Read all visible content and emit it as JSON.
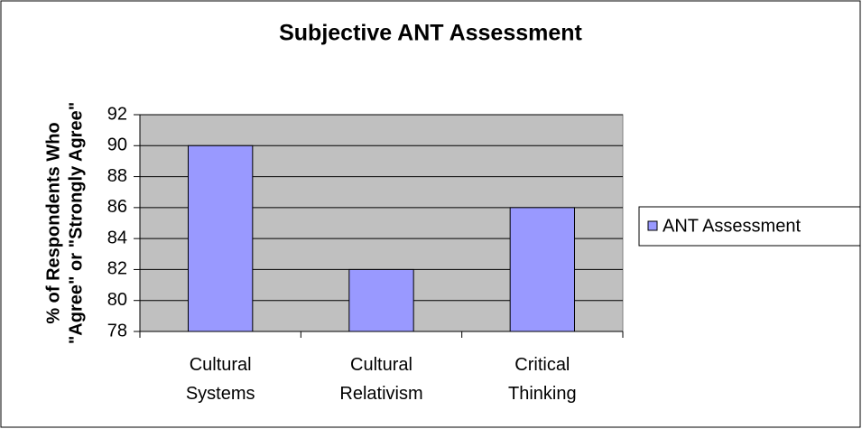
{
  "chart_data": {
    "type": "bar",
    "title": "Subjective ANT Assessment",
    "ylabel": [
      "% of Respondents Who",
      "\"Agree\" or \"Strongly Agree\""
    ],
    "categories": [
      "Cultural Systems",
      "Cultural Relativism",
      "Critical Thinking"
    ],
    "series": [
      {
        "name": "ANT Assessment",
        "color": "#9999ff",
        "values": [
          90,
          82,
          86
        ]
      }
    ],
    "ylim": [
      78,
      92
    ],
    "yticks": [
      78,
      80,
      82,
      84,
      86,
      88,
      90,
      92
    ],
    "grid": true,
    "legend": "right"
  }
}
